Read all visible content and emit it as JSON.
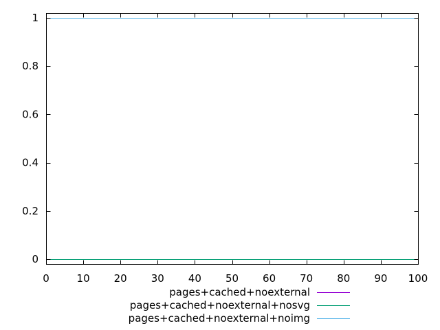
{
  "chart_data": {
    "type": "line",
    "title": "",
    "xlabel": "",
    "ylabel": "",
    "xlim": [
      0,
      100
    ],
    "ylim": [
      -0.02,
      1.02
    ],
    "x_ticks": [
      0,
      10,
      20,
      30,
      40,
      50,
      60,
      70,
      80,
      90,
      100
    ],
    "x_tick_labels": [
      "0",
      "10",
      "20",
      "30",
      "40",
      "50",
      "60",
      "70",
      "80",
      "90",
      "100"
    ],
    "y_ticks": [
      0,
      0.2,
      0.4,
      0.6,
      0.8,
      1
    ],
    "y_tick_labels": [
      "0",
      "0.2",
      "0.4",
      "0.6",
      "0.8",
      "1"
    ],
    "grid": false,
    "legend_placement": "bottom-center",
    "series": [
      {
        "name": "pages+cached+noexternal",
        "color": "#9400d3",
        "x": [
          0,
          100
        ],
        "y": [
          0,
          0
        ]
      },
      {
        "name": "pages+cached+noexternal+nosvg",
        "color": "#009e73",
        "x": [
          0,
          100
        ],
        "y": [
          0,
          0
        ]
      },
      {
        "name": "pages+cached+noexternal+noimg",
        "color": "#56b4e9",
        "x": [
          0,
          100
        ],
        "y": [
          1,
          1
        ]
      }
    ]
  }
}
